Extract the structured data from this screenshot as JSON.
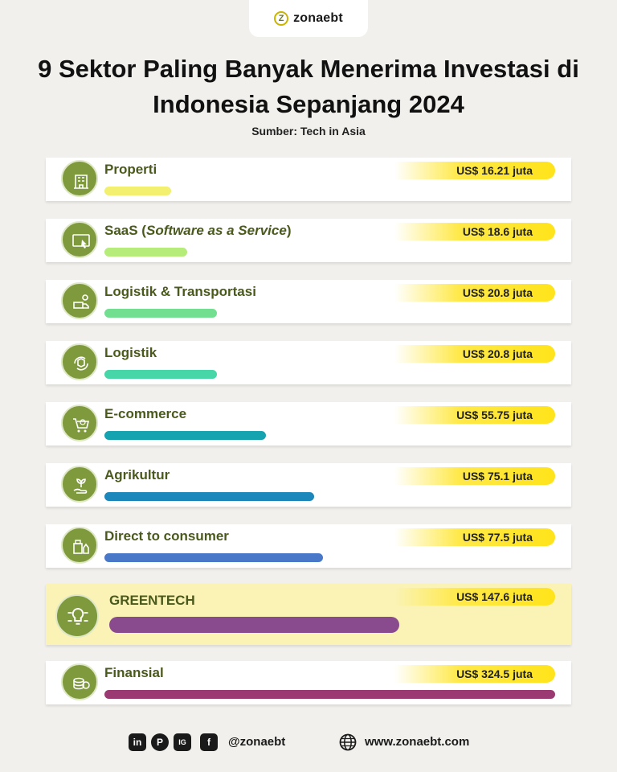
{
  "brand": {
    "name": "zonaebt",
    "mark": "Z"
  },
  "title": "9 Sektor Paling Banyak Menerima Investasi di Indonesia Sepanjang 2024",
  "source": "Sumber: Tech in Asia",
  "chart_data": {
    "type": "bar",
    "orientation": "horizontal",
    "title": "9 Sektor Paling Banyak Menerima Investasi di Indonesia Sepanjang 2024",
    "subtitle": "Sumber: Tech in Asia",
    "unit": "US$ juta",
    "categories": [
      "Properti",
      "SaaS (Software as a Service)",
      "Logistik & Transportasi",
      "Logistik",
      "E-commerce",
      "Agrikultur",
      "Direct to consumer",
      "GREENTECH",
      "Finansial"
    ],
    "values": [
      16.21,
      18.6,
      20.8,
      20.8,
      55.75,
      75.1,
      77.5,
      147.6,
      324.5
    ],
    "value_labels": [
      "US$ 16.21 juta",
      "US$ 18.6 juta",
      "US$ 20.8 juta",
      "US$ 20.8 juta",
      "US$ 55.75 juta",
      "US$ 75.1 juta",
      "US$ 77.5 juta",
      "US$ 147.6 juta",
      "US$ 324.5 juta"
    ],
    "bar_colors": [
      "#f2f06e",
      "#b5ec7a",
      "#72de90",
      "#46d6a8",
      "#16a3b0",
      "#1b87ba",
      "#4a78c8",
      "#8a4b8e",
      "#9b3a72"
    ],
    "highlighted": "GREENTECH",
    "icons": [
      "building-icon",
      "monitor-cursor-icon",
      "delivery-route-icon",
      "package-cycle-icon",
      "cart-globe-icon",
      "plant-hand-icon",
      "product-box-icon",
      "lightbulb-circuit-icon",
      "coins-icon"
    ],
    "grid": false,
    "legend": "none"
  },
  "footer": {
    "social": [
      "in",
      "P",
      "IG",
      "f"
    ],
    "handle": "@zonaebt",
    "website": "www.zonaebt.com"
  }
}
